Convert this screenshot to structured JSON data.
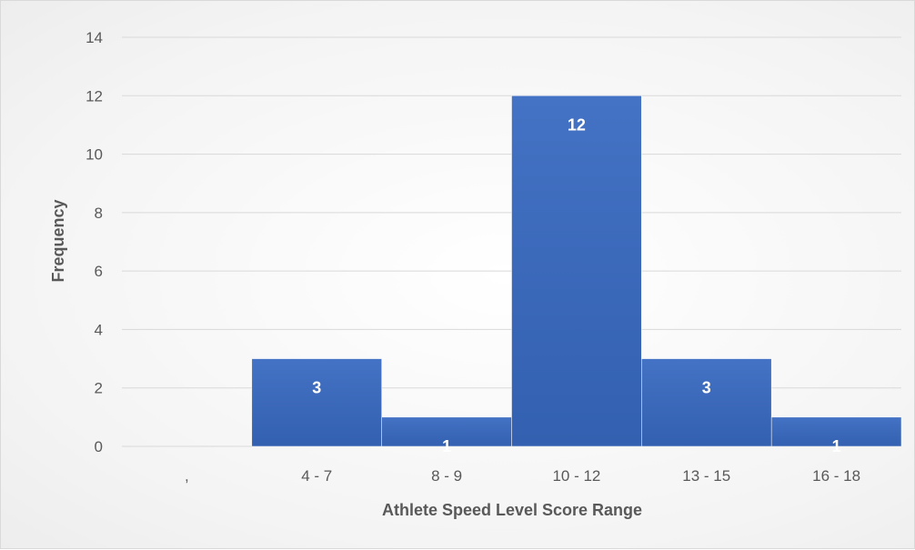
{
  "chart_data": {
    "type": "bar",
    "categories": [
      ",",
      "4 - 7",
      "8 - 9",
      "10 - 12",
      "13 - 15",
      "16 - 18"
    ],
    "values": [
      0,
      3,
      1,
      12,
      3,
      1
    ],
    "data_labels": [
      "",
      "3",
      "1",
      "12",
      "3",
      "1"
    ],
    "xlabel": "Athlete Speed Level Score Range",
    "ylabel": "Frequency",
    "ylim": [
      0,
      14
    ],
    "yticks": [
      "0",
      "2",
      "4",
      "6",
      "8",
      "10",
      "12",
      "14"
    ],
    "grid": true,
    "legend": "none",
    "colors": {
      "bar": "#4472c4",
      "bar_dark": "#3360b0",
      "grid": "#d9d9d9",
      "text": "#595959"
    }
  }
}
